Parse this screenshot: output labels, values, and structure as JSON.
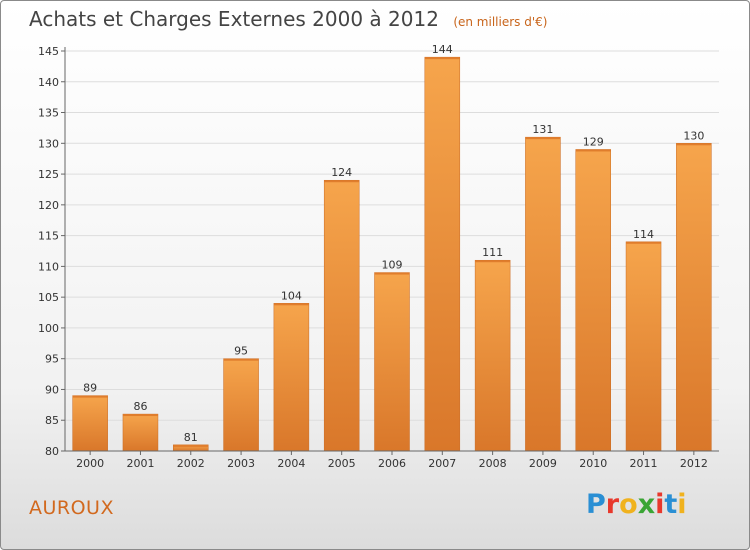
{
  "header": {
    "title": "Achats et Charges Externes 2000 à 2012",
    "subtitle": "(en milliers d'€)"
  },
  "footer": {
    "town": "AUROUX",
    "logo": "Proxiti",
    "logo_colors": [
      "#2a8fd4",
      "#e8382c",
      "#f0b21e",
      "#3aa535",
      "#e8382c",
      "#2a8fd4",
      "#f0b21e"
    ]
  },
  "colors": {
    "bar_top": "#f6a54c",
    "bar_bottom": "#d9772a",
    "grid": "#dddddd",
    "axis": "#666666"
  },
  "chart_data": {
    "type": "bar",
    "title": "Achats et Charges Externes 2000 à 2012",
    "subtitle": "(en milliers d'€)",
    "categories": [
      "2000",
      "2001",
      "2002",
      "2003",
      "2004",
      "2005",
      "2006",
      "2007",
      "2008",
      "2009",
      "2010",
      "2011",
      "2012"
    ],
    "values": [
      89,
      86,
      81,
      95,
      104,
      124,
      109,
      144,
      111,
      131,
      129,
      114,
      130
    ],
    "ylim": [
      80,
      145
    ],
    "yticks": [
      80,
      85,
      90,
      95,
      100,
      105,
      110,
      115,
      120,
      125,
      130,
      135,
      140,
      145
    ],
    "grid": true,
    "legend": "none"
  }
}
